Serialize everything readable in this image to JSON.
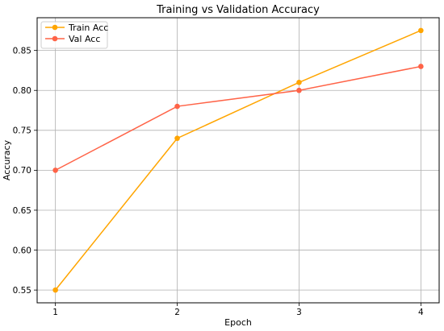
{
  "chart_data": {
    "type": "line",
    "title": "Training vs Validation Accuracy",
    "xlabel": "Epoch",
    "ylabel": "Accuracy",
    "x": [
      1,
      2,
      3,
      4
    ],
    "xticks": [
      1,
      2,
      3,
      4
    ],
    "yticks": [
      0.55,
      0.6,
      0.65,
      0.7,
      0.75,
      0.8,
      0.85
    ],
    "xlim": [
      0.85,
      4.15
    ],
    "ylim": [
      0.534,
      0.891
    ],
    "grid": true,
    "legend_position": "top-left",
    "series": [
      {
        "name": "Train Acc",
        "values": [
          0.55,
          0.74,
          0.81,
          0.875
        ],
        "color": "#FFA500",
        "marker": "circle"
      },
      {
        "name": "Val Acc",
        "values": [
          0.7,
          0.78,
          0.8,
          0.83
        ],
        "color": "#FF6347",
        "marker": "circle"
      }
    ]
  }
}
